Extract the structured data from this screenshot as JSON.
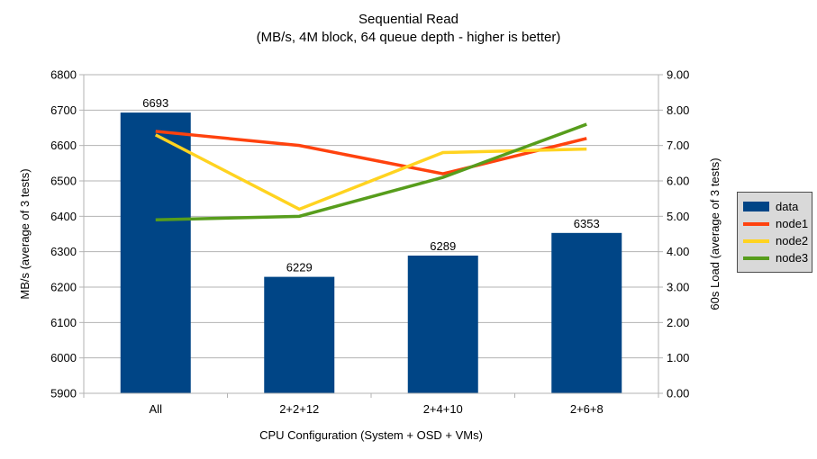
{
  "title": {
    "line1": "Sequential Read",
    "line2": "(MB/s, 4M block, 64 queue depth - higher is better)"
  },
  "chart_data": {
    "type": "bar+line",
    "title": "Sequential Read (MB/s, 4M block, 64 queue depth - higher is better)",
    "categories": [
      "All",
      "2+2+12",
      "2+4+10",
      "2+6+8"
    ],
    "bar_series": {
      "name": "data",
      "color": "#004586",
      "axis": "left",
      "values": [
        6693,
        6229,
        6289,
        6353
      ],
      "data_labels": [
        "6693",
        "6229",
        "6289",
        "6353"
      ]
    },
    "line_series": [
      {
        "name": "node1",
        "color": "#FF420E",
        "axis": "right",
        "values": [
          7.4,
          7.0,
          6.2,
          7.2
        ]
      },
      {
        "name": "node2",
        "color": "#FFD320",
        "axis": "right",
        "values": [
          7.3,
          5.2,
          6.8,
          6.9
        ]
      },
      {
        "name": "node3",
        "color": "#579D1C",
        "axis": "right",
        "values": [
          4.9,
          5.0,
          6.1,
          7.6
        ]
      }
    ],
    "left_axis": {
      "label": "MB/s (average of 3 tests)",
      "min": 5900,
      "max": 6800,
      "step": 100,
      "decimals": 0
    },
    "right_axis": {
      "label": "60s Load (average of 3 tests)",
      "min": 0,
      "max": 9,
      "step": 1,
      "decimals": 2
    },
    "x_axis": {
      "label": "CPU Configuration (System + OSD + VMs)"
    },
    "grid": true,
    "legend_position": "right",
    "colors": {
      "text": "#000000",
      "gridline": "#b3b3b3",
      "axis_line": "#b3b3b3",
      "legend_background": "#d9d9d9",
      "legend_border": "#4d4d4d",
      "plot_background": "#ffffff"
    }
  },
  "legend": {
    "items": [
      {
        "label": "data",
        "color": "#004586",
        "swatch": "box"
      },
      {
        "label": "node1",
        "color": "#FF420E",
        "swatch": "line"
      },
      {
        "label": "node2",
        "color": "#FFD320",
        "swatch": "line"
      },
      {
        "label": "node3",
        "color": "#579D1C",
        "swatch": "line"
      }
    ]
  }
}
